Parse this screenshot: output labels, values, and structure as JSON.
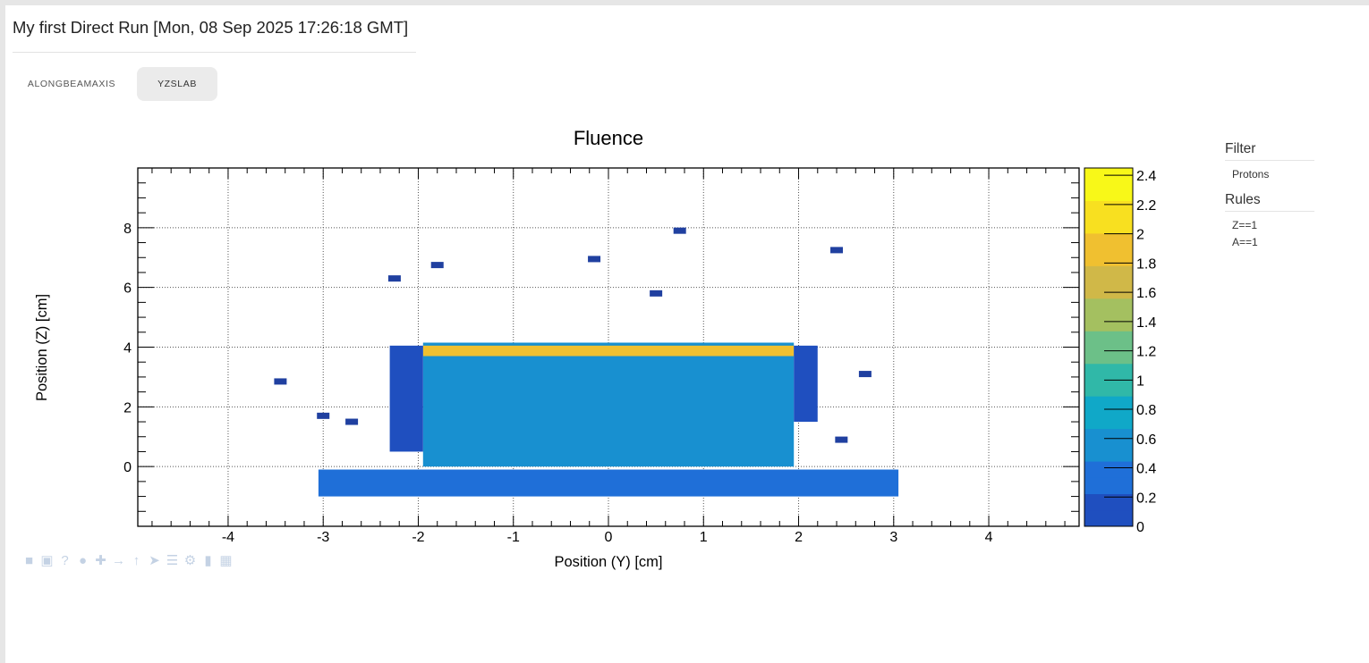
{
  "header": {
    "title": "My first Direct Run [Mon, 08 Sep 2025 17:26:18 GMT]"
  },
  "tabs": [
    {
      "label": "ALONGBEAMAXIS",
      "active": false
    },
    {
      "label": "YZSLAB",
      "active": true
    }
  ],
  "sidebar": {
    "filter_heading": "Filter",
    "filter_items": [
      "Protons"
    ],
    "rules_heading": "Rules",
    "rules_items": [
      "Z==1",
      "A==1"
    ]
  },
  "toolbar_icons": [
    "square-icon",
    "camera-icon",
    "help-icon",
    "dot-icon",
    "move-icon",
    "arrow-right-icon",
    "arrow-up-icon",
    "send-icon",
    "list-icon",
    "gear-icon",
    "battery-icon",
    "grid-icon"
  ],
  "chart_data": {
    "type": "heatmap",
    "title": "Fluence",
    "xlabel": "Position (Y) [cm]",
    "ylabel": "Position (Z) [cm]",
    "xlim": [
      -4.95,
      4.95
    ],
    "ylim": [
      -2,
      10
    ],
    "xticks": [
      -4,
      -3,
      -2,
      -1,
      0,
      1,
      2,
      3,
      4
    ],
    "yticks": [
      0,
      2,
      4,
      6,
      8
    ],
    "grid": true,
    "colorbar": {
      "range": [
        0,
        2.45
      ],
      "ticks": [
        0,
        0.2,
        0.4,
        0.6,
        0.8,
        1,
        1.2,
        1.4,
        1.6,
        1.8,
        2,
        2.2,
        2.4
      ],
      "palette": [
        "#1f4fbf",
        "#1f6fd8",
        "#1890d0",
        "#10a8c8",
        "#30b8a8",
        "#6cc088",
        "#a4c060",
        "#d0b848",
        "#f0c030",
        "#f8e020",
        "#f8f818"
      ]
    },
    "regions": [
      {
        "y": [
          -1.95,
          1.95
        ],
        "z": [
          0,
          4.15
        ],
        "value": 0.5,
        "note": "main-block"
      },
      {
        "y": [
          -1.95,
          1.95
        ],
        "z": [
          3.7,
          4.05
        ],
        "value": 1.9,
        "note": "top-band"
      },
      {
        "y": [
          -3.05,
          3.05
        ],
        "z": [
          -1.0,
          -0.1
        ],
        "value": 0.3,
        "note": "bottom-band"
      },
      {
        "y": [
          -2.3,
          -1.95
        ],
        "z": [
          0.5,
          4.05
        ],
        "value": 0.05
      },
      {
        "y": [
          1.95,
          2.2
        ],
        "z": [
          1.5,
          4.05
        ],
        "value": 0.05
      }
    ],
    "points": [
      {
        "y": 0.75,
        "z": 7.9,
        "value": 0.05
      },
      {
        "y": 2.4,
        "z": 7.25,
        "value": 0.05
      },
      {
        "y": -2.25,
        "z": 6.3,
        "value": 0.05
      },
      {
        "y": -1.8,
        "z": 6.75,
        "value": 0.05
      },
      {
        "y": -0.15,
        "z": 6.95,
        "value": 0.05
      },
      {
        "y": 0.5,
        "z": 5.8,
        "value": 0.05
      },
      {
        "y": -3.45,
        "z": 2.85,
        "value": 0.05
      },
      {
        "y": -3.0,
        "z": 1.7,
        "value": 0.05
      },
      {
        "y": -2.7,
        "z": 1.5,
        "value": 0.05
      },
      {
        "y": 2.7,
        "z": 3.1,
        "value": 0.05
      },
      {
        "y": 2.45,
        "z": 0.9,
        "value": 0.05
      }
    ]
  }
}
